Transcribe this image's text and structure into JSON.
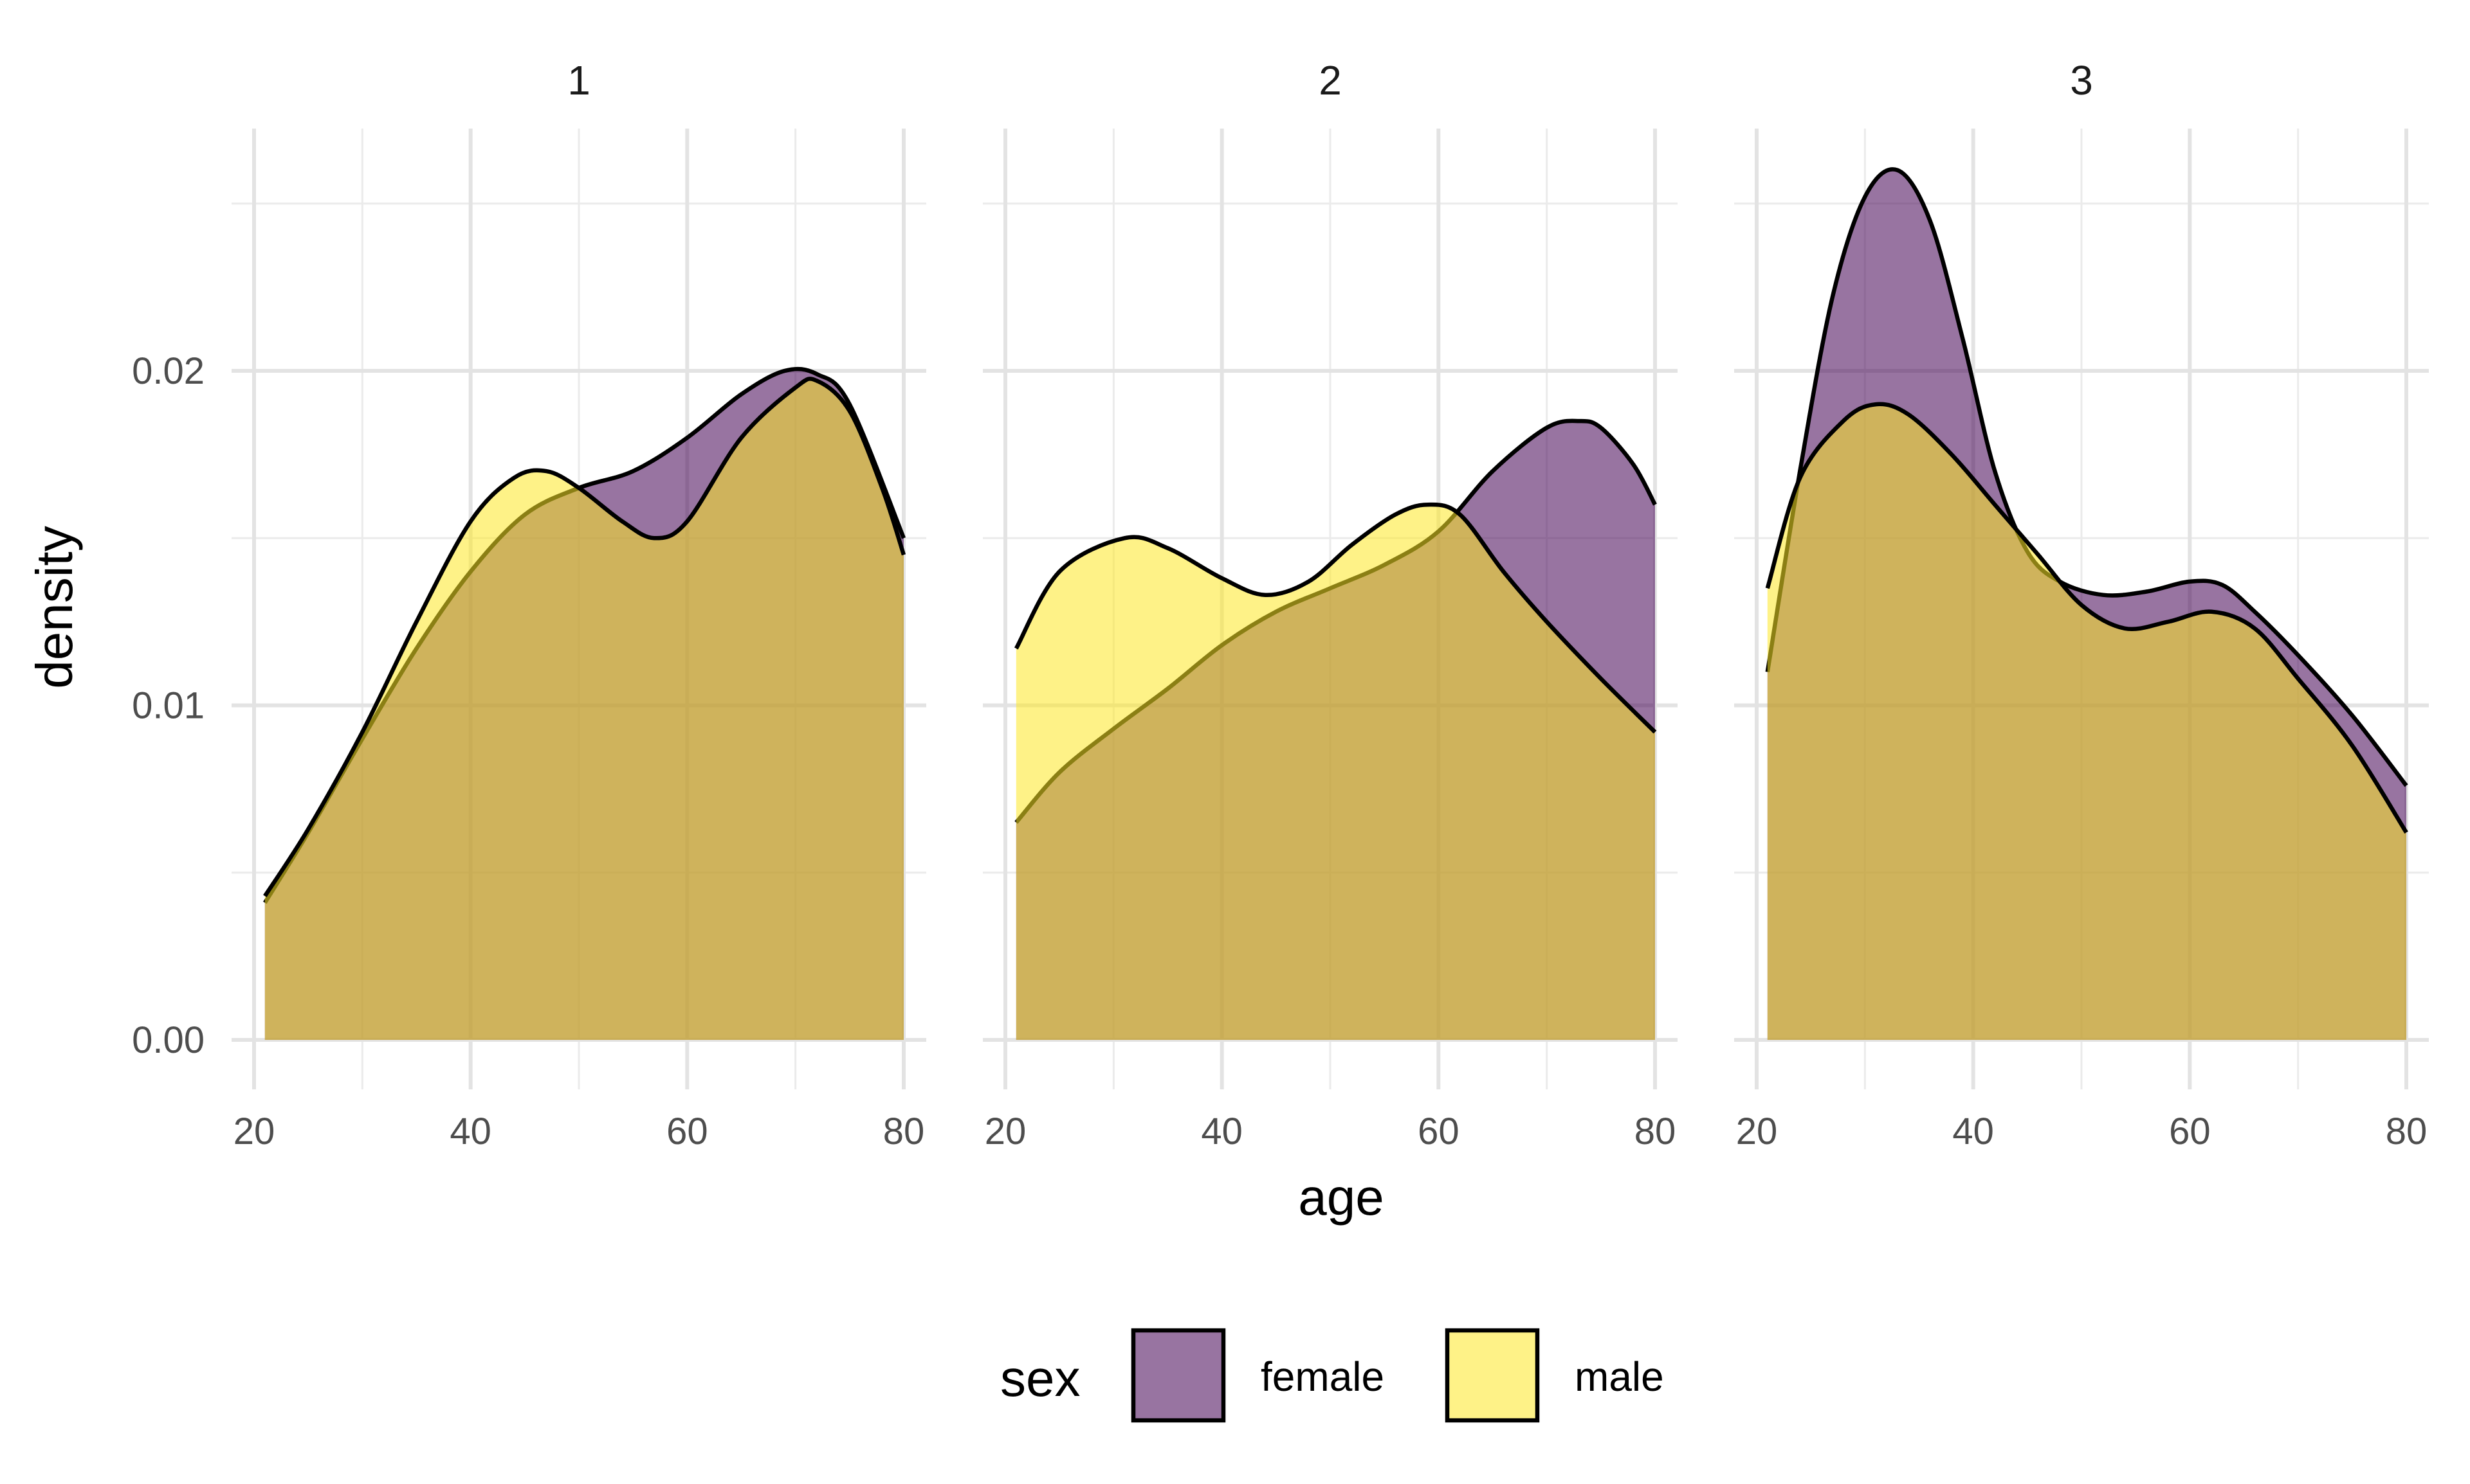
{
  "chart_data": {
    "type": "area",
    "subtype": "density",
    "facet_labels": [
      "1",
      "2",
      "3"
    ],
    "xlabel": "age",
    "ylabel": "density",
    "xlim": [
      20,
      80
    ],
    "ylim": [
      0,
      0.0265
    ],
    "x_ticks": [
      20,
      40,
      60,
      80
    ],
    "x_tick_labels": [
      "20",
      "40",
      "60",
      "80"
    ],
    "y_ticks": [
      0,
      0.01,
      0.02
    ],
    "y_tick_labels": [
      "0.00",
      "0.01",
      "0.02"
    ],
    "grid": true,
    "legend": {
      "title": "sex",
      "position": "bottom",
      "entries": [
        {
          "label": "female",
          "color": "#440154"
        },
        {
          "label": "male",
          "color": "#FDE725"
        }
      ]
    },
    "fill_alpha": 0.55,
    "panels": [
      {
        "facet": "1",
        "series": [
          {
            "name": "female",
            "color": "#440154",
            "x": [
              21,
              25,
              30,
              35,
              40,
              45,
              50,
              55,
              60,
              65,
              69,
              72,
              75,
              80
            ],
            "y": [
              0.0041,
              0.0062,
              0.009,
              0.0117,
              0.014,
              0.0157,
              0.0165,
              0.017,
              0.018,
              0.0193,
              0.02,
              0.0199,
              0.019,
              0.015
            ]
          },
          {
            "name": "male",
            "color": "#FDE725",
            "x": [
              21,
              25,
              30,
              35,
              40,
              44,
              47,
              50,
              54,
              57,
              60,
              65,
              70,
              72,
              75,
              78,
              80
            ],
            "y": [
              0.0043,
              0.0063,
              0.0092,
              0.0125,
              0.0155,
              0.0168,
              0.017,
              0.0165,
              0.0155,
              0.015,
              0.0155,
              0.018,
              0.0195,
              0.0197,
              0.0188,
              0.0165,
              0.0145
            ]
          }
        ]
      },
      {
        "facet": "2",
        "series": [
          {
            "name": "female",
            "color": "#440154",
            "x": [
              21,
              25,
              30,
              35,
              40,
              45,
              50,
              55,
              60,
              65,
              70,
              73,
              75,
              78,
              80
            ],
            "y": [
              0.0065,
              0.008,
              0.0093,
              0.0105,
              0.0118,
              0.0128,
              0.0135,
              0.0142,
              0.0152,
              0.017,
              0.0183,
              0.0185,
              0.0183,
              0.0172,
              0.016
            ]
          },
          {
            "name": "male",
            "color": "#FDE725",
            "x": [
              21,
              25,
              31,
              35,
              40,
              44,
              48,
              52,
              56,
              59,
              62,
              66,
              70,
              75,
              80
            ],
            "y": [
              0.0117,
              0.014,
              0.015,
              0.0147,
              0.0138,
              0.0133,
              0.0137,
              0.0148,
              0.0157,
              0.016,
              0.0157,
              0.014,
              0.0125,
              0.0108,
              0.0092
            ]
          }
        ]
      },
      {
        "facet": "3",
        "series": [
          {
            "name": "female",
            "color": "#440154",
            "x": [
              21,
              24,
              27,
              30,
              33,
              36,
              39,
              42,
              45,
              48,
              52,
              56,
              60,
              63,
              66,
              70,
              75,
              80
            ],
            "y": [
              0.011,
              0.017,
              0.0222,
              0.0252,
              0.026,
              0.0245,
              0.021,
              0.017,
              0.0146,
              0.0137,
              0.0133,
              0.0134,
              0.0137,
              0.0136,
              0.0128,
              0.0115,
              0.0097,
              0.0076
            ]
          },
          {
            "name": "male",
            "color": "#FDE725",
            "x": [
              21,
              24,
              28,
              31,
              34,
              38,
              42,
              46,
              50,
              54,
              58,
              62,
              66,
              70,
              75,
              80
            ],
            "y": [
              0.0135,
              0.0168,
              0.0185,
              0.019,
              0.0187,
              0.0175,
              0.016,
              0.0145,
              0.013,
              0.0123,
              0.0125,
              0.0128,
              0.0123,
              0.0108,
              0.0088,
              0.0062
            ]
          }
        ]
      }
    ]
  }
}
